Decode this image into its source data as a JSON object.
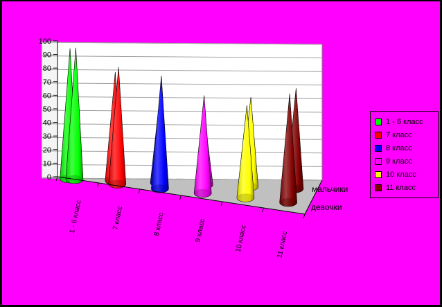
{
  "chart_data": {
    "type": "3d-cone",
    "title": "",
    "categories": [
      "1 - 6 класс",
      "7 класс",
      "8 класс",
      "9 класс",
      "10 класс",
      "11 класс"
    ],
    "depth_series": [
      "мальчики",
      "девочки"
    ],
    "series": [
      {
        "name": "1 - 6 класс",
        "color": "#00FF00",
        "values": {
          "девочки": 97,
          "мальчики": 96
        }
      },
      {
        "name": "7 класс",
        "color": "#FF0000",
        "values": {
          "девочки": 86,
          "мальчики": 80
        }
      },
      {
        "name": "8 класс",
        "color": "#0000FF",
        "values": {
          "девочки": 83,
          "мальчики": 67
        }
      },
      {
        "name": "9 класс",
        "color": "#FF00FF",
        "values": {
          "девочки": 72,
          "мальчики": 43
        }
      },
      {
        "name": "10 класс",
        "color": "#FFFF00",
        "values": {
          "девочки": 68,
          "мальчики": 66
        }
      },
      {
        "name": "11 класс",
        "color": "#800000",
        "values": {
          "девочки": 80,
          "мальчики": 74
        }
      }
    ],
    "ylim": [
      0,
      100
    ],
    "yticks": [
      "0",
      "10",
      "20",
      "30",
      "40",
      "50",
      "60",
      "70",
      "80",
      "90",
      "100"
    ],
    "grid": true,
    "legend_position": "right"
  }
}
